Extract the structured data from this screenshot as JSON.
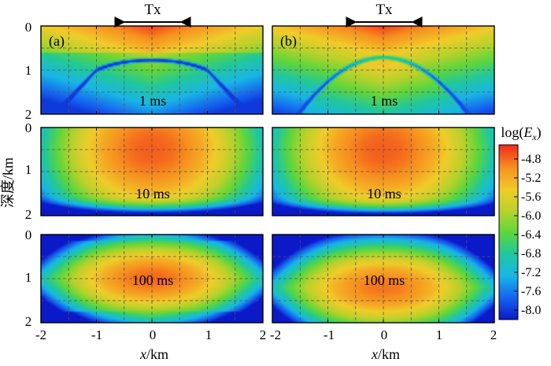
{
  "chart_data": {
    "type": "heatmap",
    "description_units": {
      "x": "km",
      "depth": "km",
      "time": "ms"
    },
    "xlabel_var": "x",
    "xlabel_unit": "/km",
    "ylabel": "深度/km",
    "x_ticks": [
      "-2",
      "-1",
      "0",
      "1",
      "2"
    ],
    "depth_ticks": [
      "0",
      "1",
      "2"
    ],
    "xlim": [
      -2,
      2
    ],
    "depth_lim": [
      0,
      2
    ],
    "transmitter": {
      "label": "Tx",
      "x_from": -0.5,
      "x_to": 0.5
    },
    "columns": [
      {
        "label": "(a)"
      },
      {
        "label": "(b)"
      }
    ],
    "time_labels": [
      "1 ms",
      "10 ms",
      "100 ms"
    ],
    "colorbar": {
      "title_prefix": "log(",
      "title_var": "E",
      "title_sub": "x",
      "title_suffix": ")",
      "range": [
        -8.2,
        -4.5
      ],
      "ticks": [
        "-4.8",
        "-5.2",
        "-5.6",
        "-6.0",
        "-6.4",
        "-6.8",
        "-7.2",
        "-7.6",
        "-8.0"
      ],
      "tick_values": [
        -4.8,
        -5.2,
        -5.6,
        -6.0,
        -6.4,
        -6.8,
        -7.2,
        -7.6,
        -8.0
      ]
    },
    "panels": [
      {
        "id": "a-1ms",
        "column": 0,
        "time": "1 ms",
        "features": "max log(Ex) ≈ -4.6 near surface under Tx; secondary field boundary arc from x=±1 km at 1 km depth to x=±1.7 km at 2 km depth; minima ≈ -8.0 along arc"
      },
      {
        "id": "b-1ms",
        "column": 1,
        "time": "1 ms",
        "features": "max ≈ -4.6 near surface; smooth dome arc peak near 0.7 km depth under Tx, reaching x=±1.6 km at 2 km depth"
      },
      {
        "id": "a-10ms",
        "column": 0,
        "time": "10 ms",
        "features": "max ≈ -4.8 at 0.5 km depth; decreasing to ≈ -8.0 at 2 km depth"
      },
      {
        "id": "b-10ms",
        "column": 1,
        "time": "10 ms",
        "features": "max ≈ -4.8 at 0.5 km depth; decreasing to ≈ -7.8 at 2 km depth"
      },
      {
        "id": "a-100ms",
        "column": 0,
        "time": "100 ms",
        "features": "max ≈ -4.8 centered at 1.0 km depth; ≈ -7.8 near top corners and bottom"
      },
      {
        "id": "b-100ms",
        "column": 1,
        "time": "100 ms",
        "features": "max ≈ -4.9 centered at 1.2 km depth; ≈ -7.4 near top corners"
      }
    ]
  }
}
